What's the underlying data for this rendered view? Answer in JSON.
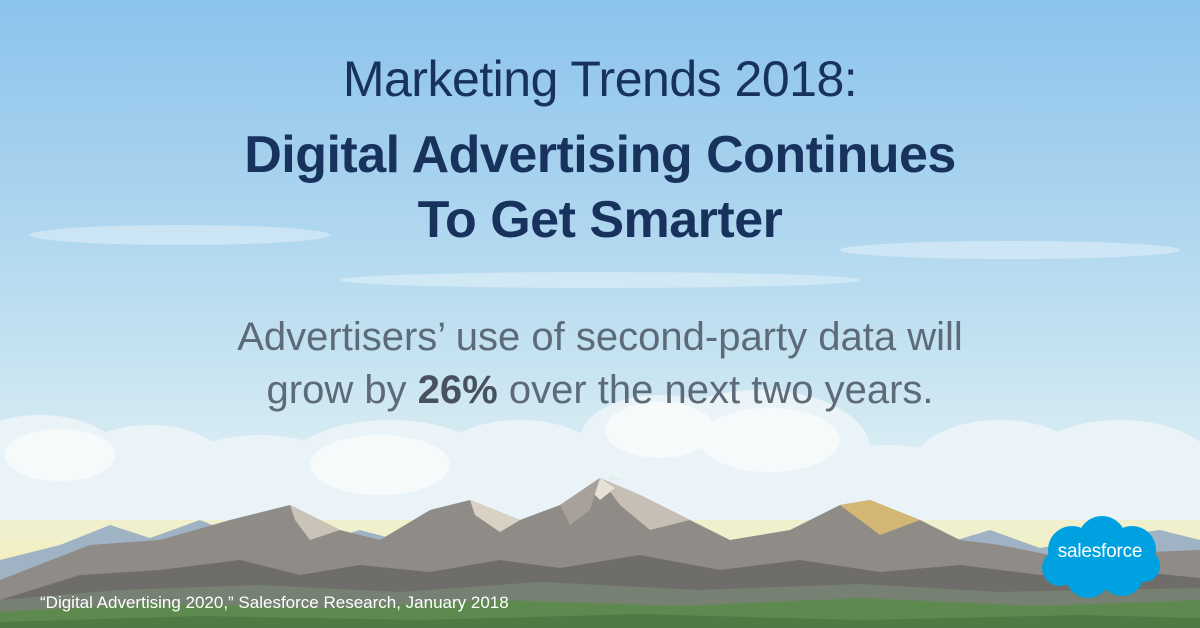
{
  "headline": {
    "line1": "Marketing Trends 2018:",
    "line2": "Digital Advertising Continues",
    "line3": "To Get Smarter"
  },
  "stat": {
    "line1": "Advertisers’ use of second-party data will",
    "line2_before": "grow by ",
    "highlight": "26%",
    "line2_after": " over the next two years."
  },
  "source": "“Digital Advertising 2020,” Salesforce Research, January 2018",
  "logo": {
    "text": "salesforce",
    "icon": "salesforce-cloud-icon",
    "color": "#00a1e0"
  },
  "colors": {
    "headline": "#17325c",
    "body": "#5d6b78",
    "sky_top": "#8cc3ec"
  }
}
